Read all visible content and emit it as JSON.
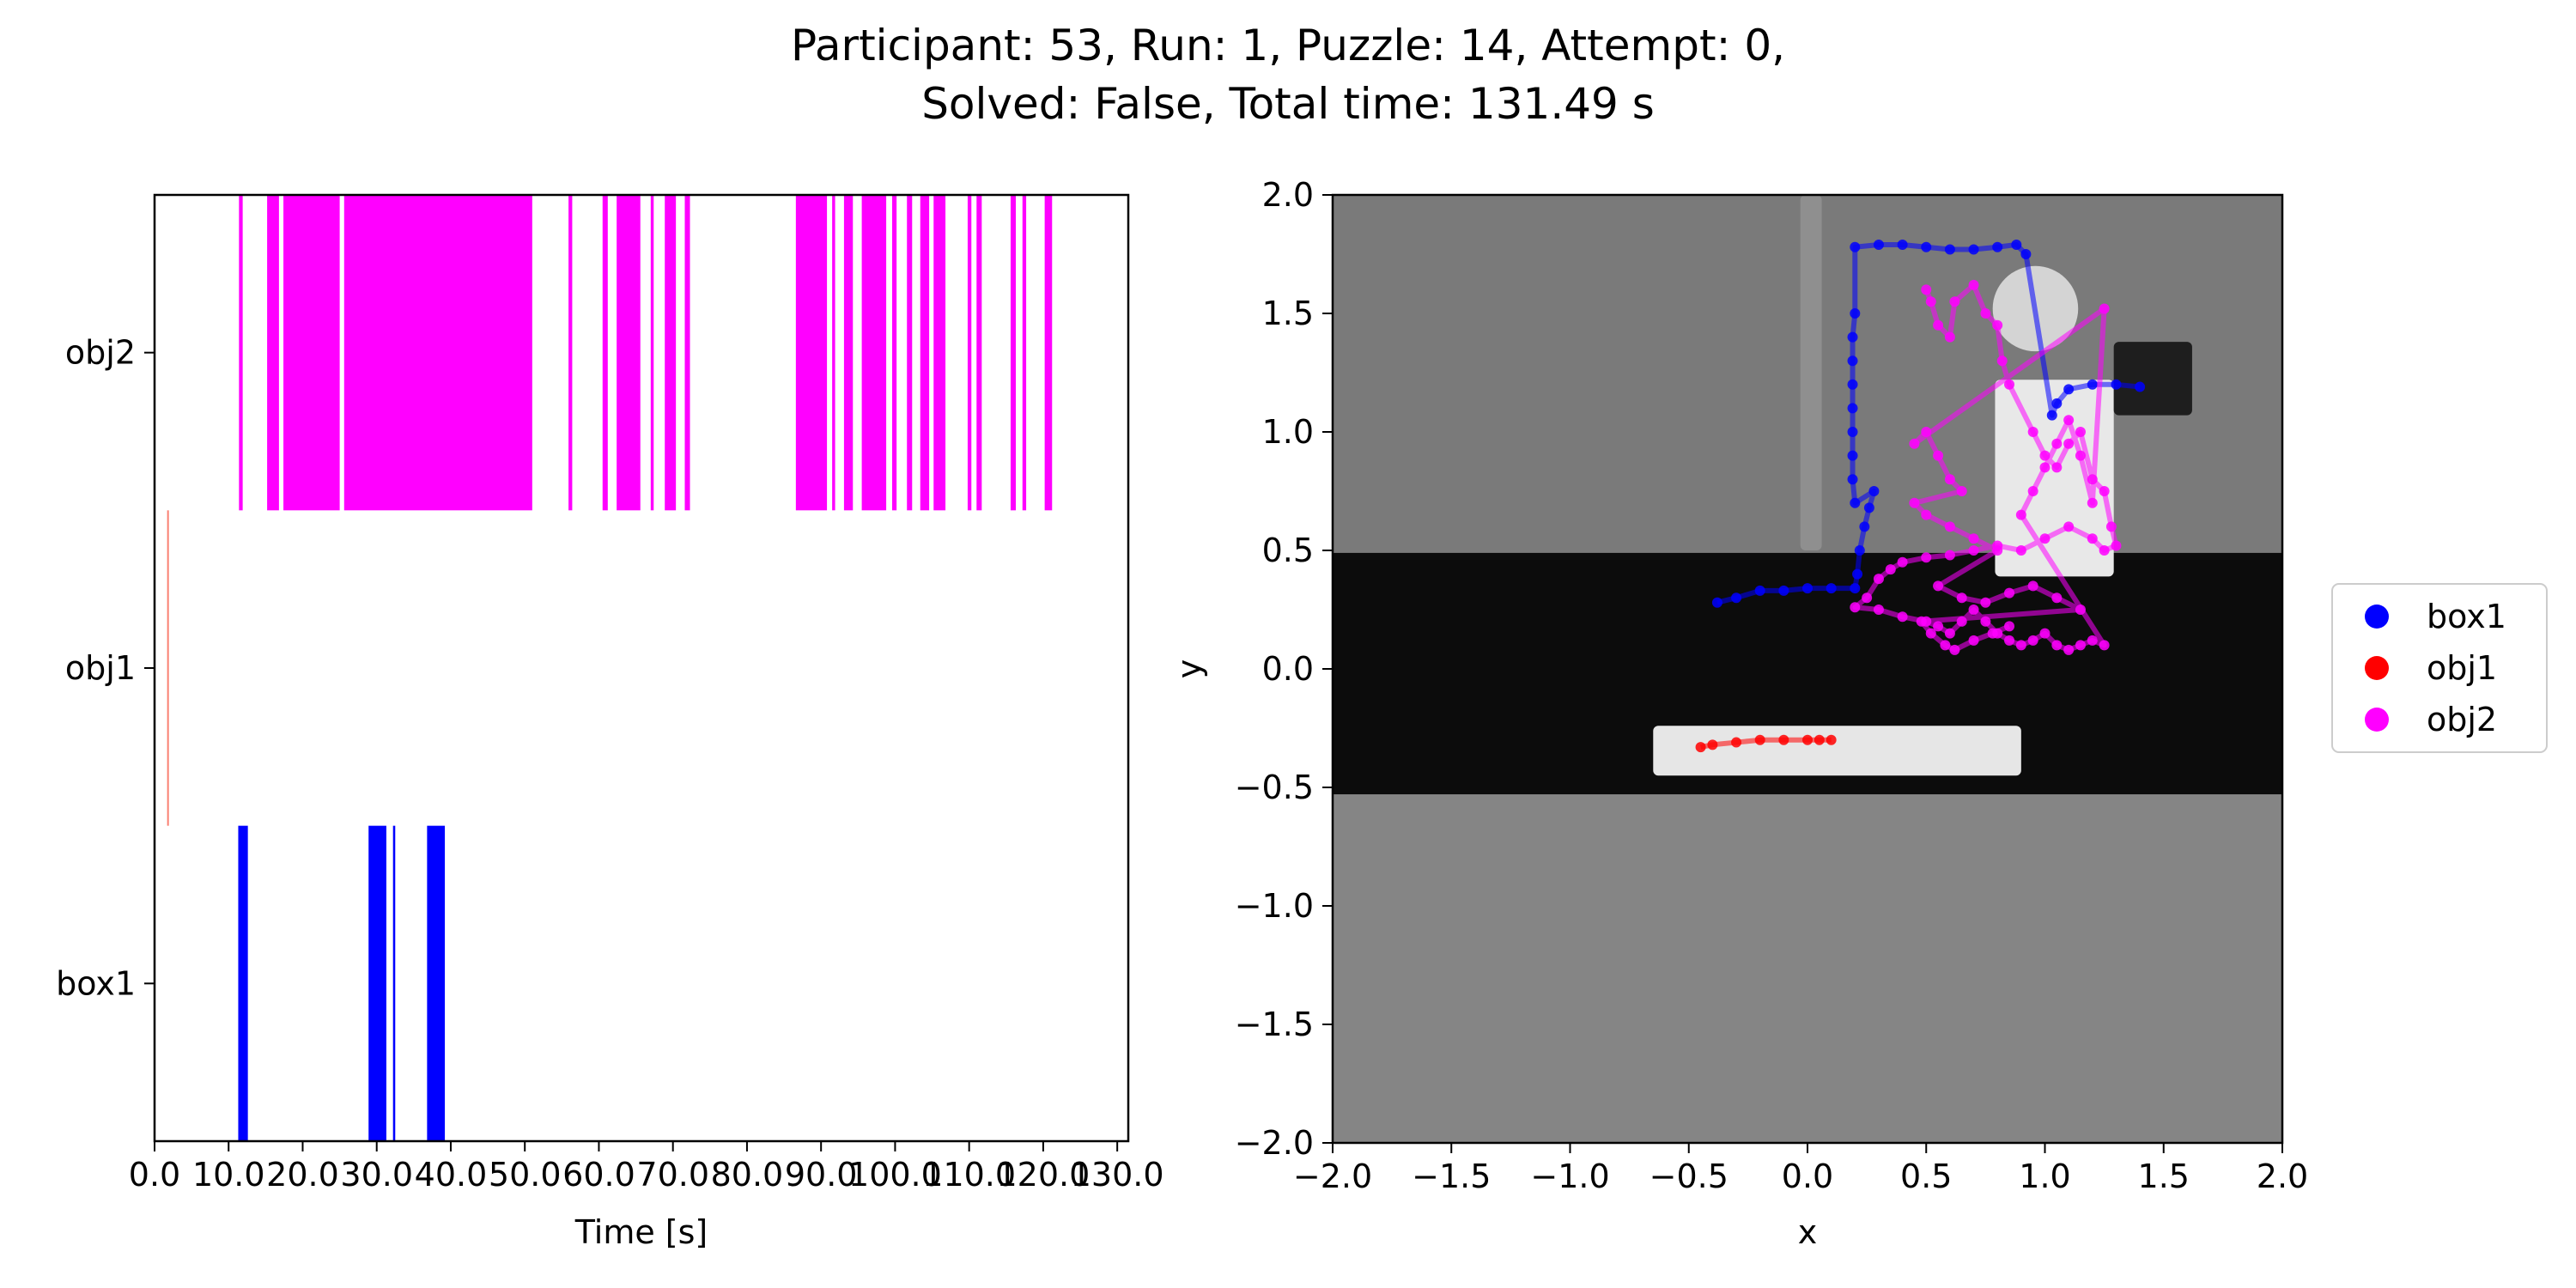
{
  "figure": {
    "title_line1": "Participant: 53, Run: 1, Puzzle: 14, Attempt: 0,",
    "title_line2": "Solved: False, Total time: 131.49 s"
  },
  "chart_data": [
    {
      "type": "timeline",
      "xlabel": "Time [s]",
      "ylabel": "",
      "xlim": [
        0,
        131.49
      ],
      "xticks": [
        0.0,
        10.0,
        20.0,
        30.0,
        40.0,
        50.0,
        60.0,
        70.0,
        80.0,
        90.0,
        100.0,
        110.0,
        120.0,
        130.0
      ],
      "xtick_labels": [
        "0.0",
        "10.0",
        "20.0",
        "30.0",
        "40.0",
        "50.0",
        "60.0",
        "70.0",
        "80.0",
        "90.0",
        "100.0",
        "110.0",
        "120.0",
        "130.0"
      ],
      "categories": [
        "box1",
        "obj1",
        "obj2"
      ],
      "series": [
        {
          "name": "box1",
          "color": "#0000ff",
          "intervals": [
            [
              11.3,
              12.6
            ],
            [
              28.9,
              31.3
            ],
            [
              32.2,
              32.5
            ],
            [
              36.8,
              39.2
            ]
          ]
        },
        {
          "name": "obj1",
          "color": "#fa8072",
          "intervals": [
            [
              1.7,
              1.85
            ]
          ]
        },
        {
          "name": "obj2",
          "color": "#ff00ff",
          "intervals": [
            [
              11.4,
              11.9
            ],
            [
              15.2,
              16.8
            ],
            [
              17.4,
              25.0
            ],
            [
              25.6,
              51.0
            ],
            [
              55.9,
              56.4
            ],
            [
              60.5,
              61.2
            ],
            [
              62.4,
              65.6
            ],
            [
              67.0,
              67.4
            ],
            [
              68.9,
              70.4
            ],
            [
              71.6,
              72.3
            ],
            [
              86.6,
              90.8
            ],
            [
              91.5,
              91.9
            ],
            [
              93.1,
              94.3
            ],
            [
              95.5,
              98.8
            ],
            [
              99.6,
              100.2
            ],
            [
              101.6,
              102.3
            ],
            [
              103.4,
              104.6
            ],
            [
              105.2,
              106.8
            ],
            [
              109.8,
              110.3
            ],
            [
              111.0,
              111.7
            ],
            [
              115.6,
              116.3
            ],
            [
              117.2,
              117.7
            ],
            [
              120.2,
              121.2
            ]
          ]
        }
      ]
    },
    {
      "type": "scatter",
      "xlabel": "x",
      "ylabel": "y",
      "xlim": [
        -2.0,
        2.0
      ],
      "ylim": [
        -2.0,
        2.0
      ],
      "xticks": [
        -2.0,
        -1.5,
        -1.0,
        -0.5,
        0.0,
        0.5,
        1.0,
        1.5,
        2.0
      ],
      "yticks": [
        -2.0,
        -1.5,
        -1.0,
        -0.5,
        0.0,
        0.5,
        1.0,
        1.5,
        2.0
      ],
      "xtick_labels": [
        "−2.0",
        "−1.5",
        "−1.0",
        "−0.5",
        "0.0",
        "0.5",
        "1.0",
        "1.5",
        "2.0"
      ],
      "ytick_labels": [
        "−2.0",
        "−1.5",
        "−1.0",
        "−0.5",
        "0.0",
        "0.5",
        "1.0",
        "1.5",
        "2.0"
      ],
      "legend": {
        "placement": "center-right-outside",
        "entries": [
          "box1",
          "obj1",
          "obj2"
        ]
      },
      "background": {
        "top_wall_color": "#7a7a7a",
        "table_color": "#0c0c0c",
        "floor_color": "#858585",
        "table_y_range": [
          -0.53,
          0.49
        ],
        "props": [
          {
            "shape": "rect",
            "x": [
              -0.65,
              0.9
            ],
            "y": [
              -0.45,
              -0.24
            ],
            "color": "#e6e6e6"
          },
          {
            "shape": "rect",
            "x": [
              0.79,
              1.29
            ],
            "y": [
              0.39,
              1.22
            ],
            "color": "#e8e8e8"
          },
          {
            "shape": "rect",
            "x": [
              1.29,
              1.62
            ],
            "y": [
              1.07,
              1.38
            ],
            "color": "#1e1e1e"
          },
          {
            "shape": "rect",
            "x": [
              -0.03,
              0.06
            ],
            "y": [
              0.5,
              2.0
            ],
            "color": "#8f8f8f"
          },
          {
            "shape": "circle",
            "cx": 0.96,
            "cy": 1.52,
            "r": 0.18,
            "color": "#d4d4d4"
          }
        ]
      },
      "series": [
        {
          "name": "box1",
          "color": "#0000ff",
          "x": [
            -0.38,
            -0.3,
            -0.2,
            -0.1,
            0.0,
            0.1,
            0.2,
            0.21,
            0.22,
            0.24,
            0.26,
            0.28,
            0.2,
            0.19,
            0.19,
            0.19,
            0.19,
            0.19,
            0.19,
            0.19,
            0.2,
            0.2,
            0.3,
            0.4,
            0.5,
            0.6,
            0.7,
            0.8,
            0.88,
            0.92,
            1.03,
            1.05,
            1.1,
            1.2,
            1.3,
            1.4
          ],
          "y": [
            0.28,
            0.3,
            0.33,
            0.33,
            0.34,
            0.34,
            0.34,
            0.4,
            0.5,
            0.6,
            0.68,
            0.75,
            0.7,
            0.8,
            0.9,
            1.0,
            1.1,
            1.2,
            1.3,
            1.4,
            1.5,
            1.78,
            1.79,
            1.79,
            1.78,
            1.77,
            1.77,
            1.78,
            1.79,
            1.75,
            1.07,
            1.12,
            1.18,
            1.2,
            1.2,
            1.19
          ]
        },
        {
          "name": "obj1",
          "color": "#ff0000",
          "x": [
            -0.45,
            -0.4,
            -0.3,
            -0.2,
            -0.1,
            0.0,
            0.05,
            0.1
          ],
          "y": [
            -0.33,
            -0.32,
            -0.31,
            -0.3,
            -0.3,
            -0.3,
            -0.3,
            -0.3
          ]
        },
        {
          "name": "obj2",
          "color": "#ff00ff",
          "x": [
            0.5,
            0.52,
            0.55,
            0.6,
            0.62,
            0.7,
            0.75,
            0.8,
            0.82,
            0.85,
            0.95,
            1.0,
            1.05,
            1.1,
            1.15,
            1.2,
            1.25,
            1.28,
            1.3,
            1.25,
            1.2,
            1.1,
            1.0,
            0.9,
            0.8,
            0.7,
            0.6,
            0.5,
            0.4,
            0.35,
            0.3,
            0.25,
            0.2,
            0.3,
            0.4,
            0.5,
            0.55,
            0.6,
            0.65,
            0.7,
            0.75,
            0.8,
            0.85,
            0.9,
            0.95,
            1.0,
            1.05,
            1.1,
            1.15,
            1.2,
            1.25,
            0.9,
            0.95,
            1.0,
            1.05,
            1.1,
            1.15,
            1.2,
            1.25,
            0.45,
            0.5,
            0.55,
            0.6,
            0.65,
            0.45,
            0.5,
            0.6,
            0.7,
            0.8,
            0.55,
            0.65,
            0.75,
            0.85,
            0.95,
            1.05,
            1.15,
            0.48,
            0.52,
            0.58,
            0.62,
            0.7,
            0.78,
            0.85
          ],
          "y": [
            1.6,
            1.55,
            1.45,
            1.4,
            1.55,
            1.62,
            1.5,
            1.45,
            1.3,
            1.2,
            1.0,
            0.9,
            0.85,
            0.95,
            1.0,
            0.8,
            0.75,
            0.6,
            0.52,
            0.5,
            0.55,
            0.6,
            0.55,
            0.5,
            0.52,
            0.5,
            0.48,
            0.47,
            0.45,
            0.42,
            0.38,
            0.3,
            0.26,
            0.25,
            0.22,
            0.2,
            0.18,
            0.15,
            0.2,
            0.25,
            0.2,
            0.15,
            0.12,
            0.1,
            0.12,
            0.15,
            0.1,
            0.08,
            0.1,
            0.12,
            0.1,
            0.65,
            0.75,
            0.85,
            0.95,
            1.05,
            0.9,
            0.7,
            1.52,
            0.95,
            1.0,
            0.9,
            0.8,
            0.75,
            0.7,
            0.65,
            0.6,
            0.55,
            0.5,
            0.35,
            0.3,
            0.28,
            0.32,
            0.35,
            0.3,
            0.25,
            0.2,
            0.15,
            0.1,
            0.08,
            0.12,
            0.15,
            0.18
          ]
        }
      ]
    }
  ]
}
